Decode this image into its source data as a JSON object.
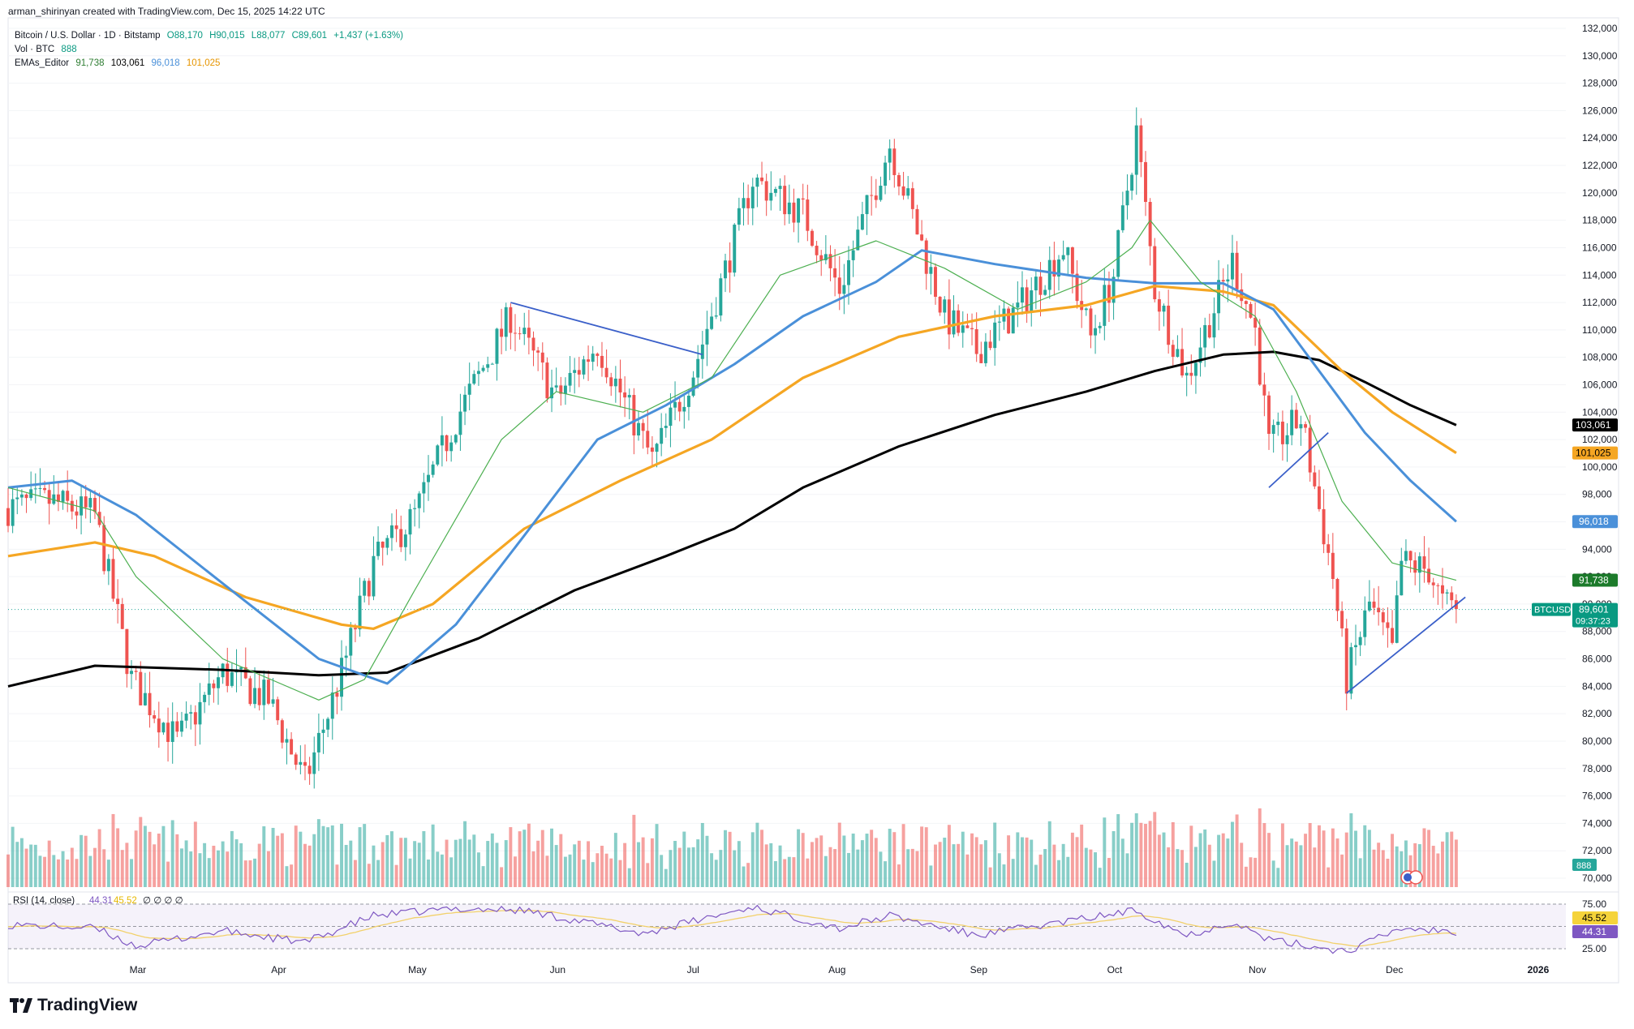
{
  "header": {
    "attribution": "arman_shirinyan created with TradingView.com, Dec 15, 2025 14:22 UTC"
  },
  "legend": {
    "symbol": "Bitcoin / U.S. Dollar · 1D · Bitstamp",
    "ohlc": {
      "o": "O88,170",
      "h": "H90,015",
      "l": "L88,077",
      "c": "C89,601",
      "chg": "+1,437 (+1.63%)"
    },
    "vol_label": "Vol · BTC",
    "vol_value": "888",
    "ema_label": "EMAs_Editor",
    "ema_values": [
      "91,738",
      "103,061",
      "96,018",
      "101,025"
    ]
  },
  "rsi": {
    "label": "RSI (14, close)",
    "value": "44.31",
    "ma_value": "45.52",
    "extra": "∅ ∅ ∅ ∅",
    "levels": [
      "75.00",
      "50.00",
      "25.00"
    ]
  },
  "price_axis": {
    "labels": [
      "132,000",
      "130,000",
      "128,000",
      "126,000",
      "124,000",
      "122,000",
      "120,000",
      "118,000",
      "116,000",
      "114,000",
      "112,000",
      "110,000",
      "108,000",
      "106,000",
      "104,000",
      "102,000",
      "100,000",
      "98,000",
      "96,000",
      "94,000",
      "92,000",
      "90,000",
      "88,000",
      "86,000",
      "84,000",
      "82,000",
      "80,000",
      "78,000",
      "76,000",
      "74,000",
      "72,000",
      "70,000"
    ]
  },
  "badges": {
    "ema200": "103,061",
    "ema100": "101,025",
    "ema50": "96,018",
    "ema20": "91,738",
    "ticker": "BTCUSD",
    "price": "89,601",
    "countdown": "09:37:23",
    "volume": "888",
    "rsi": "44.31",
    "rsi_ma": "45.52"
  },
  "time_axis": {
    "labels": [
      "Mar",
      "Apr",
      "May",
      "Jun",
      "Jul",
      "Aug",
      "Sep",
      "Oct",
      "Nov",
      "Dec",
      "2026"
    ]
  },
  "footer": {
    "brand": "TradingView"
  },
  "colors": {
    "up": "#26a69a",
    "down": "#ef5350",
    "ema20": "#4caf50",
    "ema50": "#4a90d9",
    "ema100": "#f5a623",
    "ema200": "#000000",
    "rsi": "#7e57c2",
    "rsi_ma": "#f2d16b",
    "trendline": "#3a5fc9"
  },
  "chart_data": {
    "type": "candlestick",
    "title": "Bitcoin / U.S. Dollar · 1D · Bitstamp",
    "ylim": [
      70000,
      132000
    ],
    "x_range": [
      "2025-02-01",
      "2026-01-08"
    ],
    "close_points": [
      [
        "2025-02-01",
        97000
      ],
      [
        "2025-02-10",
        97500
      ],
      [
        "2025-02-20",
        96500
      ],
      [
        "2025-02-28",
        84500
      ],
      [
        "2025-03-10",
        80000
      ],
      [
        "2025-03-20",
        85000
      ],
      [
        "2025-03-30",
        83000
      ],
      [
        "2025-04-07",
        77000
      ],
      [
        "2025-04-15",
        85000
      ],
      [
        "2025-04-22",
        93000
      ],
      [
        "2025-05-01",
        96500
      ],
      [
        "2025-05-10",
        103500
      ],
      [
        "2025-05-22",
        111000
      ],
      [
        "2025-06-01",
        105000
      ],
      [
        "2025-06-10",
        109000
      ],
      [
        "2025-06-22",
        100500
      ],
      [
        "2025-07-01",
        107000
      ],
      [
        "2025-07-10",
        116500
      ],
      [
        "2025-07-14",
        121000
      ],
      [
        "2025-07-25",
        118500
      ],
      [
        "2025-08-02",
        113000
      ],
      [
        "2025-08-13",
        123500
      ],
      [
        "2025-08-25",
        111000
      ],
      [
        "2025-09-01",
        108500
      ],
      [
        "2025-09-10",
        111500
      ],
      [
        "2025-09-20",
        116000
      ],
      [
        "2025-09-26",
        109500
      ],
      [
        "2025-10-01",
        114000
      ],
      [
        "2025-10-06",
        124500
      ],
      [
        "2025-10-10",
        113000
      ],
      [
        "2025-10-17",
        106500
      ],
      [
        "2025-10-27",
        115000
      ],
      [
        "2025-11-01",
        110000
      ],
      [
        "2025-11-04",
        101500
      ],
      [
        "2025-11-11",
        103500
      ],
      [
        "2025-11-18",
        92000
      ],
      [
        "2025-11-21",
        84500
      ],
      [
        "2025-11-26",
        90000
      ],
      [
        "2025-12-01",
        86500
      ],
      [
        "2025-12-03",
        93000
      ],
      [
        "2025-12-09",
        92500
      ],
      [
        "2025-12-12",
        90000
      ],
      [
        "2025-12-15",
        89601
      ]
    ],
    "ema20": [
      [
        "2025-02-01",
        98500
      ],
      [
        "2025-02-20",
        96800
      ],
      [
        "2025-03-01",
        92000
      ],
      [
        "2025-03-20",
        86000
      ],
      [
        "2025-04-10",
        83000
      ],
      [
        "2025-04-20",
        84500
      ],
      [
        "2025-05-01",
        91000
      ],
      [
        "2025-05-20",
        102000
      ],
      [
        "2025-06-01",
        105500
      ],
      [
        "2025-06-20",
        104000
      ],
      [
        "2025-07-05",
        106500
      ],
      [
        "2025-07-20",
        114000
      ],
      [
        "2025-08-10",
        116500
      ],
      [
        "2025-08-25",
        114500
      ],
      [
        "2025-09-10",
        111500
      ],
      [
        "2025-09-25",
        113500
      ],
      [
        "2025-10-05",
        116000
      ],
      [
        "2025-10-09",
        118000
      ],
      [
        "2025-10-20",
        113500
      ],
      [
        "2025-11-01",
        111000
      ],
      [
        "2025-11-10",
        105500
      ],
      [
        "2025-11-20",
        97500
      ],
      [
        "2025-12-01",
        93000
      ],
      [
        "2025-12-15",
        91738
      ]
    ],
    "ema50": [
      [
        "2025-02-01",
        98500
      ],
      [
        "2025-02-15",
        99000
      ],
      [
        "2025-03-01",
        96500
      ],
      [
        "2025-03-20",
        91500
      ],
      [
        "2025-04-10",
        86000
      ],
      [
        "2025-04-25",
        84200
      ],
      [
        "2025-05-10",
        88500
      ],
      [
        "2025-05-25",
        95000
      ],
      [
        "2025-06-10",
        102000
      ],
      [
        "2025-06-25",
        104500
      ],
      [
        "2025-07-10",
        107500
      ],
      [
        "2025-07-25",
        111000
      ],
      [
        "2025-08-10",
        113500
      ],
      [
        "2025-08-20",
        115800
      ],
      [
        "2025-09-05",
        114800
      ],
      [
        "2025-09-25",
        113800
      ],
      [
        "2025-10-10",
        113400
      ],
      [
        "2025-10-25",
        113400
      ],
      [
        "2025-11-05",
        111500
      ],
      [
        "2025-11-15",
        107000
      ],
      [
        "2025-11-25",
        102500
      ],
      [
        "2025-12-05",
        99000
      ],
      [
        "2025-12-15",
        96018
      ]
    ],
    "ema100": [
      [
        "2025-02-01",
        93500
      ],
      [
        "2025-02-20",
        94500
      ],
      [
        "2025-03-05",
        93500
      ],
      [
        "2025-03-25",
        90500
      ],
      [
        "2025-04-15",
        88500
      ],
      [
        "2025-04-22",
        88200
      ],
      [
        "2025-05-05",
        90000
      ],
      [
        "2025-05-25",
        95500
      ],
      [
        "2025-06-15",
        99000
      ],
      [
        "2025-07-05",
        102000
      ],
      [
        "2025-07-25",
        106500
      ],
      [
        "2025-08-15",
        109500
      ],
      [
        "2025-09-05",
        111000
      ],
      [
        "2025-09-25",
        111800
      ],
      [
        "2025-10-10",
        113200
      ],
      [
        "2025-10-25",
        112800
      ],
      [
        "2025-11-05",
        111800
      ],
      [
        "2025-11-20",
        107000
      ],
      [
        "2025-12-01",
        104000
      ],
      [
        "2025-12-15",
        101025
      ]
    ],
    "ema200": [
      [
        "2025-02-01",
        84000
      ],
      [
        "2025-02-20",
        85500
      ],
      [
        "2025-03-20",
        85200
      ],
      [
        "2025-04-10",
        84800
      ],
      [
        "2025-04-25",
        85000
      ],
      [
        "2025-05-15",
        87500
      ],
      [
        "2025-06-05",
        91000
      ],
      [
        "2025-06-25",
        93500
      ],
      [
        "2025-07-10",
        95500
      ],
      [
        "2025-07-25",
        98500
      ],
      [
        "2025-08-15",
        101500
      ],
      [
        "2025-09-05",
        103800
      ],
      [
        "2025-09-25",
        105500
      ],
      [
        "2025-10-10",
        107000
      ],
      [
        "2025-10-25",
        108200
      ],
      [
        "2025-11-05",
        108400
      ],
      [
        "2025-11-15",
        107800
      ],
      [
        "2025-11-25",
        106200
      ],
      [
        "2025-12-05",
        104500
      ],
      [
        "2025-12-15",
        103061
      ]
    ],
    "trendlines": [
      {
        "from": [
          "2025-05-22",
          112000
        ],
        "to": [
          "2025-07-03",
          108200
        ]
      },
      {
        "from": [
          "2025-11-04",
          98500
        ],
        "to": [
          "2025-11-17",
          102500
        ]
      },
      {
        "from": [
          "2025-11-21",
          83500
        ],
        "to": [
          "2025-12-17",
          90500
        ]
      }
    ],
    "rsi_points": [
      [
        "2025-02-01",
        52
      ],
      [
        "2025-02-20",
        48
      ],
      [
        "2025-03-01",
        28
      ],
      [
        "2025-03-20",
        45
      ],
      [
        "2025-04-07",
        32
      ],
      [
        "2025-04-22",
        62
      ],
      [
        "2025-05-10",
        70
      ],
      [
        "2025-05-25",
        68
      ],
      [
        "2025-06-20",
        42
      ],
      [
        "2025-07-14",
        72
      ],
      [
        "2025-08-02",
        48
      ],
      [
        "2025-08-13",
        62
      ],
      [
        "2025-09-01",
        40
      ],
      [
        "2025-09-20",
        55
      ],
      [
        "2025-10-06",
        68
      ],
      [
        "2025-10-17",
        40
      ],
      [
        "2025-10-27",
        55
      ],
      [
        "2025-11-04",
        35
      ],
      [
        "2025-11-21",
        22
      ],
      [
        "2025-12-03",
        48
      ],
      [
        "2025-12-10",
        46
      ],
      [
        "2025-12-15",
        44.31
      ]
    ]
  }
}
